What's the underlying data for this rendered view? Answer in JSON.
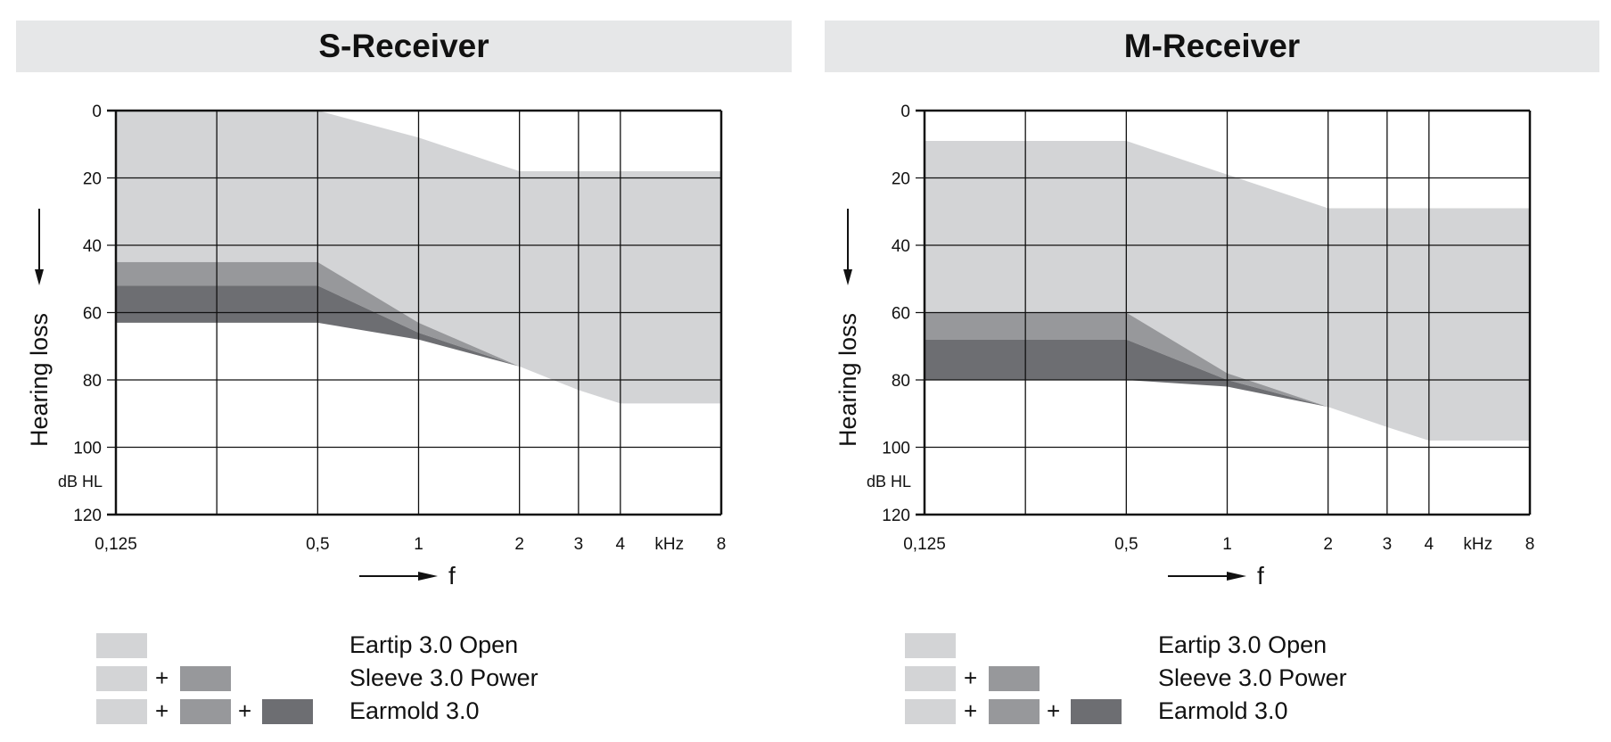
{
  "colors": {
    "header_bg": "#e6e7e8",
    "open": "#d3d4d6",
    "sleeve": "#97989b",
    "earmold": "#6d6e72"
  },
  "legend": {
    "open": "Eartip 3.0 Open",
    "sleeve": "Sleeve 3.0 Power",
    "earmold": "Earmold 3.0",
    "plus": "+"
  },
  "chart_data": [
    {
      "type": "area",
      "title": "S-Receiver",
      "ylabel": "Hearing loss",
      "yunit": "dB HL",
      "xlabel": "f",
      "xunit": "kHz",
      "ylim": [
        0,
        120
      ],
      "yticks": [
        0,
        20,
        40,
        60,
        80,
        100,
        120
      ],
      "y_inverted": true,
      "x_scale": "log",
      "xlim": [
        0.125,
        8
      ],
      "xticks": [
        0.125,
        0.25,
        0.5,
        1,
        2,
        3,
        4,
        8
      ],
      "xtick_labels": [
        {
          "v": 0.125,
          "t": "0,125"
        },
        {
          "v": 0.5,
          "t": "0,5"
        },
        {
          "v": 1,
          "t": "1"
        },
        {
          "v": 2,
          "t": "2"
        },
        {
          "v": 3,
          "t": "3"
        },
        {
          "v": 4,
          "t": "4"
        },
        {
          "v": 8,
          "t": "8"
        }
      ],
      "grid": true,
      "series": [
        {
          "name": "Eartip 3.0 Open",
          "x": [
            0.125,
            0.5,
            1,
            2,
            3,
            4,
            8
          ],
          "top": [
            0,
            0,
            8,
            18,
            18,
            18,
            18
          ],
          "bottom": [
            45,
            45,
            63,
            76,
            83,
            87,
            87
          ]
        },
        {
          "name": "Sleeve 3.0 Power",
          "x": [
            0.125,
            0.5,
            1,
            2
          ],
          "top": [
            45,
            45,
            63,
            76
          ],
          "bottom": [
            52,
            52,
            66,
            76
          ]
        },
        {
          "name": "Earmold 3.0",
          "x": [
            0.125,
            0.5,
            1,
            2
          ],
          "top": [
            52,
            52,
            66,
            76
          ],
          "bottom": [
            63,
            63,
            68,
            76
          ]
        }
      ]
    },
    {
      "type": "area",
      "title": "M-Receiver",
      "ylabel": "Hearing loss",
      "yunit": "dB HL",
      "xlabel": "f",
      "xunit": "kHz",
      "ylim": [
        0,
        120
      ],
      "yticks": [
        0,
        20,
        40,
        60,
        80,
        100,
        120
      ],
      "y_inverted": true,
      "x_scale": "log",
      "xlim": [
        0.125,
        8
      ],
      "xticks": [
        0.125,
        0.25,
        0.5,
        1,
        2,
        3,
        4,
        8
      ],
      "xtick_labels": [
        {
          "v": 0.125,
          "t": "0,125"
        },
        {
          "v": 0.5,
          "t": "0,5"
        },
        {
          "v": 1,
          "t": "1"
        },
        {
          "v": 2,
          "t": "2"
        },
        {
          "v": 3,
          "t": "3"
        },
        {
          "v": 4,
          "t": "4"
        },
        {
          "v": 8,
          "t": "8"
        }
      ],
      "grid": true,
      "series": [
        {
          "name": "Eartip 3.0 Open",
          "x": [
            0.125,
            0.5,
            1,
            2,
            3,
            4,
            8
          ],
          "top": [
            9,
            9,
            19,
            29,
            29,
            29,
            29
          ],
          "bottom": [
            60,
            60,
            78,
            88,
            94,
            98,
            98
          ]
        },
        {
          "name": "Sleeve 3.0 Power",
          "x": [
            0.125,
            0.5,
            1,
            2
          ],
          "top": [
            60,
            60,
            78,
            88
          ],
          "bottom": [
            68,
            68,
            80,
            88
          ]
        },
        {
          "name": "Earmold 3.0",
          "x": [
            0.125,
            0.5,
            1,
            2
          ],
          "top": [
            68,
            68,
            80,
            88
          ],
          "bottom": [
            80,
            80,
            82,
            88
          ]
        }
      ]
    }
  ]
}
